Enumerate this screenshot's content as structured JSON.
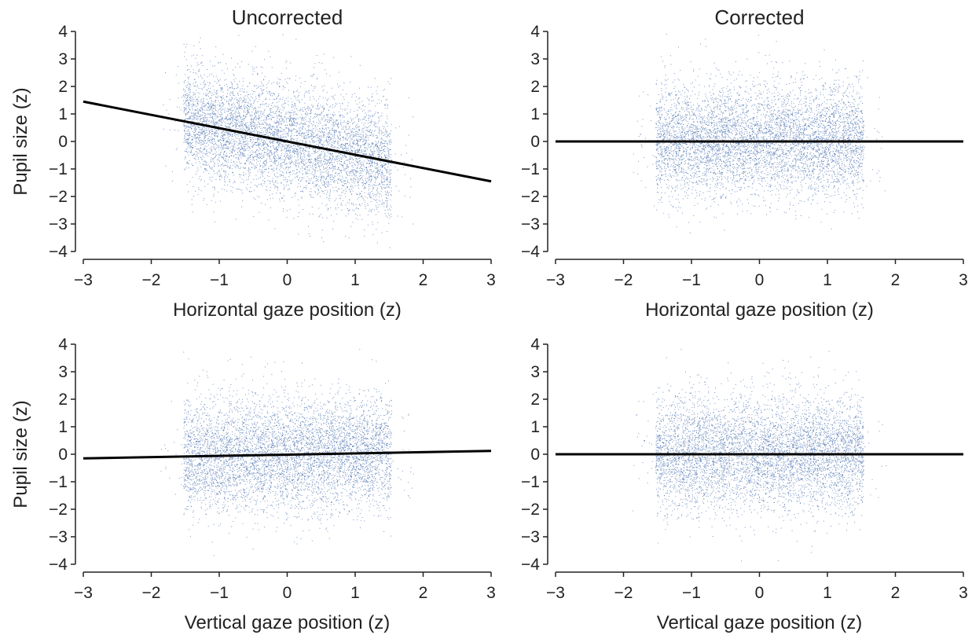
{
  "chart_data": [
    {
      "type": "scatter",
      "title": "Uncorrected",
      "xlabel": "Horizontal gaze position (z)",
      "ylabel": "Pupil size (z)",
      "xlim": [
        -3,
        3
      ],
      "ylim": [
        -4,
        4
      ],
      "xticks": [
        "−3",
        "−2",
        "−1",
        "0",
        "1",
        "2",
        "3"
      ],
      "yticks": [
        "4",
        "3",
        "2",
        "1",
        "0",
        "−1",
        "−2",
        "−3",
        "−4"
      ],
      "grid": false,
      "scatter_extent": {
        "x": [
          -1.5,
          1.5
        ],
        "y": [
          -2.3,
          2.3
        ]
      },
      "fit_line": {
        "x": [
          -3,
          3
        ],
        "y": [
          1.45,
          -1.45
        ]
      }
    },
    {
      "type": "scatter",
      "title": "Corrected",
      "xlabel": "Horizontal gaze position (z)",
      "ylabel": "",
      "xlim": [
        -3,
        3
      ],
      "ylim": [
        -4,
        4
      ],
      "xticks": [
        "−3",
        "−2",
        "−1",
        "0",
        "1",
        "2",
        "3"
      ],
      "yticks": [
        "4",
        "3",
        "2",
        "1",
        "0",
        "−1",
        "−2",
        "−3",
        "−4"
      ],
      "grid": false,
      "scatter_extent": {
        "x": [
          -1.5,
          1.5
        ],
        "y": [
          -2.4,
          2.2
        ]
      },
      "fit_line": {
        "x": [
          -3,
          3
        ],
        "y": [
          0,
          0
        ]
      }
    },
    {
      "type": "scatter",
      "title": "",
      "xlabel": "Vertical gaze position (z)",
      "ylabel": "Pupil size (z)",
      "xlim": [
        -3,
        3
      ],
      "ylim": [
        -4,
        4
      ],
      "xticks": [
        "−3",
        "−2",
        "−1",
        "0",
        "1",
        "2",
        "3"
      ],
      "yticks": [
        "4",
        "3",
        "2",
        "1",
        "0",
        "−1",
        "−2",
        "−3",
        "−4"
      ],
      "grid": false,
      "scatter_extent": {
        "x": [
          -1.5,
          1.5
        ],
        "y": [
          -2.3,
          2.4
        ]
      },
      "fit_line": {
        "x": [
          -3,
          3
        ],
        "y": [
          -0.15,
          0.12
        ]
      }
    },
    {
      "type": "scatter",
      "title": "",
      "xlabel": "Vertical gaze position (z)",
      "ylabel": "",
      "xlim": [
        -3,
        3
      ],
      "ylim": [
        -4,
        4
      ],
      "xticks": [
        "−3",
        "−2",
        "−1",
        "0",
        "1",
        "2",
        "3"
      ],
      "yticks": [
        "4",
        "3",
        "2",
        "1",
        "0",
        "−1",
        "−2",
        "−3",
        "−4"
      ],
      "grid": false,
      "scatter_extent": {
        "x": [
          -1.5,
          1.5
        ],
        "y": [
          -2.4,
          2.3
        ]
      },
      "fit_line": {
        "x": [
          -3,
          3
        ],
        "y": [
          0,
          0
        ]
      }
    }
  ],
  "colors": {
    "scatter": "#4c72b0",
    "fit_line": "#000000",
    "axis": "#222222"
  }
}
